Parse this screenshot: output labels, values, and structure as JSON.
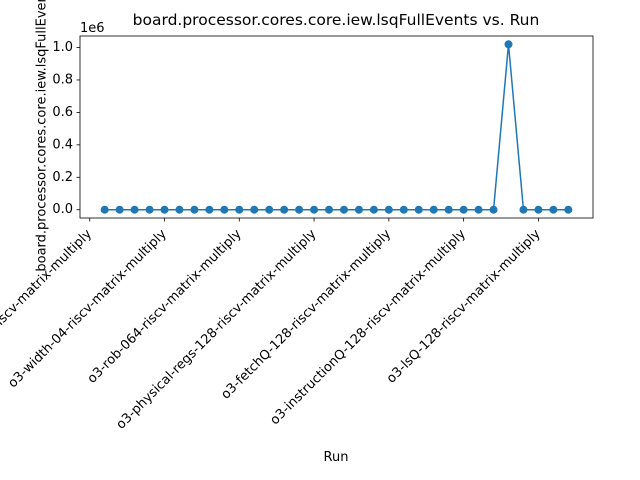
{
  "chart_data": {
    "type": "line",
    "title": "board.processor.cores.core.iew.lsqFullEvents vs. Run",
    "xlabel": "Run",
    "ylabel": "board.processor.cores.core.iew.lsqFullEvents",
    "y_offset_label": "1e6",
    "x": [
      0,
      1,
      2,
      3,
      4,
      5,
      6,
      7,
      8,
      9,
      10,
      11,
      12,
      13,
      14,
      15,
      16,
      17,
      18,
      19,
      20,
      21,
      22,
      23,
      24,
      25,
      26,
      27,
      28,
      29,
      30,
      31
    ],
    "values": [
      0,
      0,
      0,
      0,
      0,
      0,
      0,
      0,
      0,
      0,
      0,
      0,
      0,
      0,
      0,
      0,
      0,
      0,
      0,
      0,
      0,
      0,
      0,
      0,
      0,
      0,
      0,
      1020000,
      0,
      0,
      0,
      0
    ],
    "color": "#1f77b4",
    "xlim": [
      -1.65,
      32.65
    ],
    "xticks": [
      {
        "value": -1,
        "label": "inorder-riscv-matrix-multiply"
      },
      {
        "value": 4,
        "label": "o3-width-04-riscv-matrix-multiply"
      },
      {
        "value": 9,
        "label": "o3-rob-064-riscv-matrix-multiply"
      },
      {
        "value": 14,
        "label": "o3-physical-regs-128-riscv-matrix-multiply"
      },
      {
        "value": 19,
        "label": "o3-fetchQ-128-riscv-matrix-multiply"
      },
      {
        "value": 24,
        "label": "o3-instructionQ-128-riscv-matrix-multiply"
      },
      {
        "value": 29,
        "label": "o3-lsQ-128-riscv-matrix-multiply"
      }
    ],
    "ylim": [
      -51000,
      1071000
    ],
    "yticks": [
      {
        "value": 0,
        "label": "0.0"
      },
      {
        "value": 200000,
        "label": "0.2"
      },
      {
        "value": 400000,
        "label": "0.4"
      },
      {
        "value": 600000,
        "label": "0.6"
      },
      {
        "value": 800000,
        "label": "0.8"
      },
      {
        "value": 1000000,
        "label": "1.0"
      }
    ]
  }
}
